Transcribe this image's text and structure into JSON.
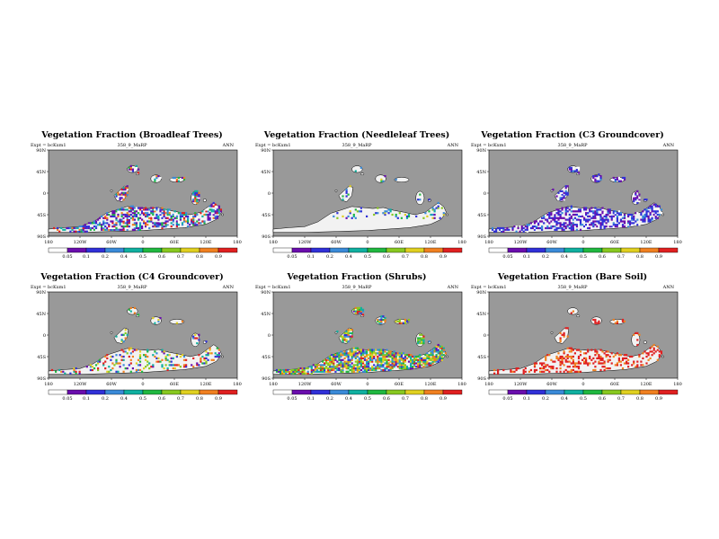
{
  "page": {
    "background": "#ffffff"
  },
  "panels": [
    {
      "title": "Vegetation Fraction (Broadleaf Trees)",
      "meta_left": "Expt = bcKxm1",
      "meta_center": "358_9_MaRP",
      "meta_right": "ANN",
      "first_bin_label": "0.05"
    },
    {
      "title": "Vegetation Fraction (Needleleaf Trees)",
      "meta_left": "Expt = bcKxm1",
      "meta_center": "358_9_MaRP",
      "meta_right": "ANN",
      "first_bin_label": "0.05"
    },
    {
      "title": "Vegetation Fraction (C3 Groundcover)",
      "meta_left": "Expt = bcKxm1",
      "meta_center": "358_9_MaRP",
      "meta_right": "ANN",
      "first_bin_label": "0.05"
    },
    {
      "title": "Vegetation Fraction (C4 Groundcover)",
      "meta_left": "Expt = bcKxm1",
      "meta_center": "358_9_MaRP",
      "meta_right": "ANN",
      "first_bin_label": "0.05"
    },
    {
      "title": "Vegetation Fraction (Shrubs)",
      "meta_left": "Expt = bcKxm1",
      "meta_center": "358_9_MaRP",
      "meta_right": "ANN",
      "first_bin_label": "0.05"
    },
    {
      "title": "Vegetation Fraction (Bare Soil)",
      "meta_left": "Expt = bcKxm1",
      "meta_center": "358_9_MaRP",
      "meta_right": "ANN",
      "first_bin_label": "0.05"
    }
  ],
  "chart_data": [
    {
      "type": "heatmap",
      "title": "Vegetation Fraction (Broadleaf Trees)",
      "xlim": [
        -180,
        180
      ],
      "ylim": [
        -90,
        90
      ],
      "x_ticks": [
        "180",
        "120W",
        "60W",
        "0",
        "60E",
        "120E",
        "180"
      ],
      "y_ticks": [
        "90N",
        "45N",
        "0",
        "45S",
        "90S"
      ],
      "colorbar": {
        "levels": [
          "0.05",
          "0.1",
          "0.2",
          "0.4",
          "0.5",
          "0.6",
          "0.7",
          "0.8",
          "0.9"
        ]
      }
    },
    {
      "type": "heatmap",
      "title": "Vegetation Fraction (Needleleaf Trees)",
      "xlim": [
        -180,
        180
      ],
      "ylim": [
        -90,
        90
      ],
      "x_ticks": [
        "180",
        "120W",
        "60W",
        "0",
        "60E",
        "120E",
        "180"
      ],
      "y_ticks": [
        "90N",
        "45N",
        "0",
        "45S",
        "90S"
      ],
      "colorbar": {
        "levels": [
          "0.05",
          "0.1",
          "0.2",
          "0.4",
          "0.5",
          "0.6",
          "0.7",
          "0.8",
          "0.9"
        ]
      }
    },
    {
      "type": "heatmap",
      "title": "Vegetation Fraction (C3 Groundcover)",
      "xlim": [
        -180,
        180
      ],
      "ylim": [
        -90,
        90
      ],
      "x_ticks": [
        "180",
        "120W",
        "60W",
        "0",
        "60E",
        "120E",
        "180"
      ],
      "y_ticks": [
        "90N",
        "45N",
        "0",
        "45S",
        "90S"
      ],
      "colorbar": {
        "levels": [
          "0.05",
          "0.1",
          "0.2",
          "0.4",
          "0.5",
          "0.6",
          "0.7",
          "0.8",
          "0.9"
        ]
      }
    },
    {
      "type": "heatmap",
      "title": "Vegetation Fraction (C4 Groundcover)",
      "xlim": [
        -180,
        180
      ],
      "ylim": [
        -90,
        90
      ],
      "x_ticks": [
        "180",
        "120W",
        "60W",
        "0",
        "60E",
        "120E",
        "180"
      ],
      "y_ticks": [
        "90N",
        "45N",
        "0",
        "45S",
        "90S"
      ],
      "colorbar": {
        "levels": [
          "0.05",
          "0.1",
          "0.2",
          "0.4",
          "0.5",
          "0.6",
          "0.7",
          "0.8",
          "0.9"
        ]
      }
    },
    {
      "type": "heatmap",
      "title": "Vegetation Fraction (Shrubs)",
      "xlim": [
        -180,
        180
      ],
      "ylim": [
        -90,
        90
      ],
      "x_ticks": [
        "180",
        "120W",
        "60W",
        "0",
        "60E",
        "120E",
        "180"
      ],
      "y_ticks": [
        "90N",
        "45N",
        "0",
        "45S",
        "90S"
      ],
      "colorbar": {
        "levels": [
          "0.05",
          "0.1",
          "0.2",
          "0.4",
          "0.5",
          "0.6",
          "0.7",
          "0.8",
          "0.9"
        ]
      }
    },
    {
      "type": "heatmap",
      "title": "Vegetation Fraction (Bare Soil)",
      "xlim": [
        -180,
        180
      ],
      "ylim": [
        -90,
        90
      ],
      "x_ticks": [
        "180",
        "120W",
        "60W",
        "0",
        "60E",
        "120E",
        "180"
      ],
      "y_ticks": [
        "90N",
        "45N",
        "0",
        "45S",
        "90S"
      ],
      "colorbar": {
        "levels": [
          "0.05",
          "0.1",
          "0.2",
          "0.4",
          "0.5",
          "0.6",
          "0.7",
          "0.8",
          "0.9"
        ]
      }
    }
  ],
  "colors": {
    "ocean": "#999999",
    "land_zero": "#f2f2f2",
    "outline": "#000000",
    "colorbar": [
      "#ffffff",
      "#6a0dad",
      "#3030d8",
      "#3a8ad8",
      "#10b0a0",
      "#20b840",
      "#88c820",
      "#e0d020",
      "#f08020",
      "#e02020"
    ]
  }
}
